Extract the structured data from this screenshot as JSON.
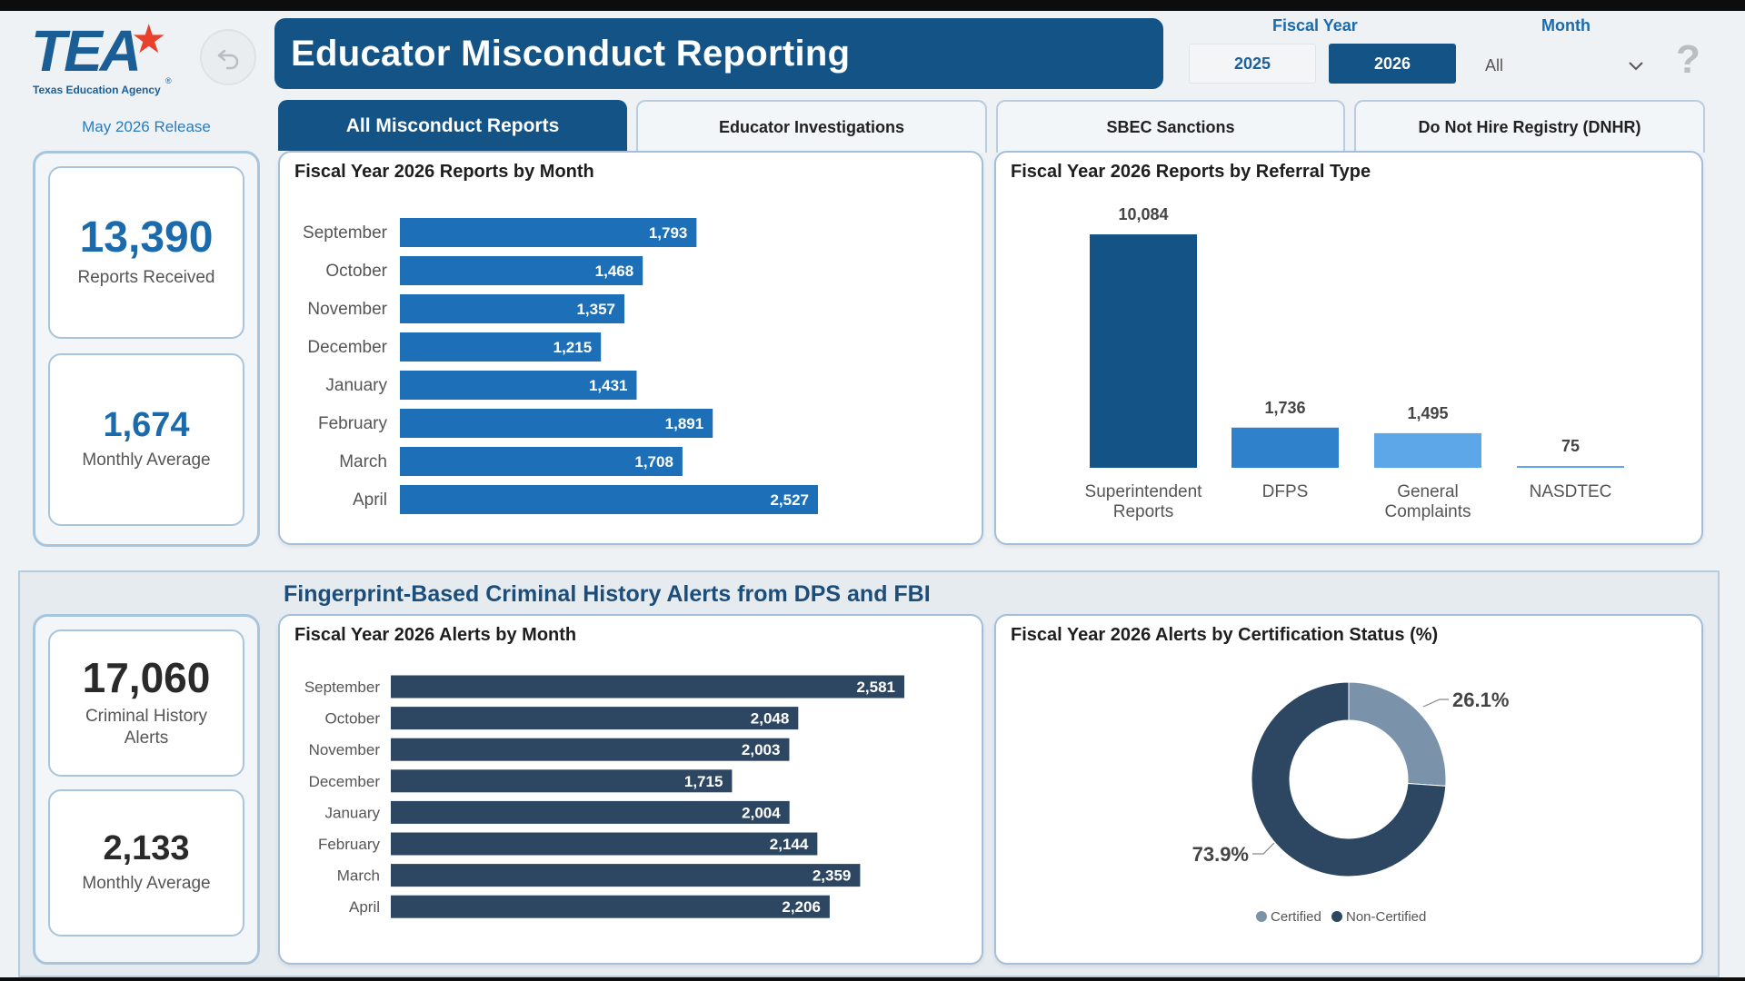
{
  "logo": {
    "name": "TEA",
    "subtitle": "Texas Education Agency",
    "reg": "®"
  },
  "header": {
    "title": "Educator Misconduct Reporting"
  },
  "filters": {
    "fiscal_year_label": "Fiscal Year",
    "month_label": "Month",
    "years": [
      "2025",
      "2026"
    ],
    "selected_year": "2026",
    "month_value": "All"
  },
  "release": "May 2026 Release",
  "tabs": [
    "All Misconduct Reports",
    "Educator Investigations",
    "SBEC Sanctions",
    "Do Not Hire Registry (DNHR)"
  ],
  "kpis_top": [
    {
      "value": "13,390",
      "label": "Reports Received"
    },
    {
      "value": "1,674",
      "label": "Monthly Average"
    }
  ],
  "kpis_bottom": [
    {
      "value": "17,060",
      "label": "Criminal History Alerts"
    },
    {
      "value": "2,133",
      "label": "Monthly Average"
    }
  ],
  "section_title": "Fingerprint-Based Criminal History Alerts from DPS and FBI",
  "colors": {
    "primary": "#135386",
    "bar_blue": "#1d70b8",
    "bar_dark": "#2d4763",
    "bar_mid": "#2f81cb",
    "bar_light": "#5da7e8",
    "donut_dark": "#2d4763",
    "donut_light": "#7b93aa"
  },
  "chart_data": [
    {
      "type": "bar",
      "title": "Fiscal Year 2026 Reports by Month",
      "orientation": "horizontal",
      "categories": [
        "September",
        "October",
        "November",
        "December",
        "January",
        "February",
        "March",
        "April"
      ],
      "values": [
        1793,
        1468,
        1357,
        1215,
        1431,
        1891,
        1708,
        2527
      ],
      "labels": [
        "1,793",
        "1,468",
        "1,357",
        "1,215",
        "1,431",
        "1,891",
        "1,708",
        "2,527"
      ]
    },
    {
      "type": "bar",
      "title": "Fiscal Year 2026 Reports by Referral Type",
      "orientation": "vertical",
      "categories": [
        "Superintendent Reports",
        "DFPS",
        "General Complaints",
        "NASDTEC"
      ],
      "values": [
        10084,
        1736,
        1495,
        75
      ],
      "labels": [
        "10,084",
        "1,736",
        "1,495",
        "75"
      ]
    },
    {
      "type": "bar",
      "title": "Fiscal Year 2026 Alerts by Month",
      "orientation": "horizontal",
      "categories": [
        "September",
        "October",
        "November",
        "December",
        "January",
        "February",
        "March",
        "April"
      ],
      "values": [
        2581,
        2048,
        2003,
        1715,
        2004,
        2144,
        2359,
        2206
      ],
      "labels": [
        "2,581",
        "2,048",
        "2,003",
        "1,715",
        "2,004",
        "2,144",
        "2,359",
        "2,206"
      ]
    },
    {
      "type": "pie",
      "title": "Fiscal Year 2026 Alerts by Certification Status (%)",
      "categories": [
        "Certified",
        "Non-Certified"
      ],
      "values": [
        26.1,
        73.9
      ],
      "labels": [
        "26.1%",
        "73.9%"
      ],
      "legend": "bottom"
    }
  ]
}
